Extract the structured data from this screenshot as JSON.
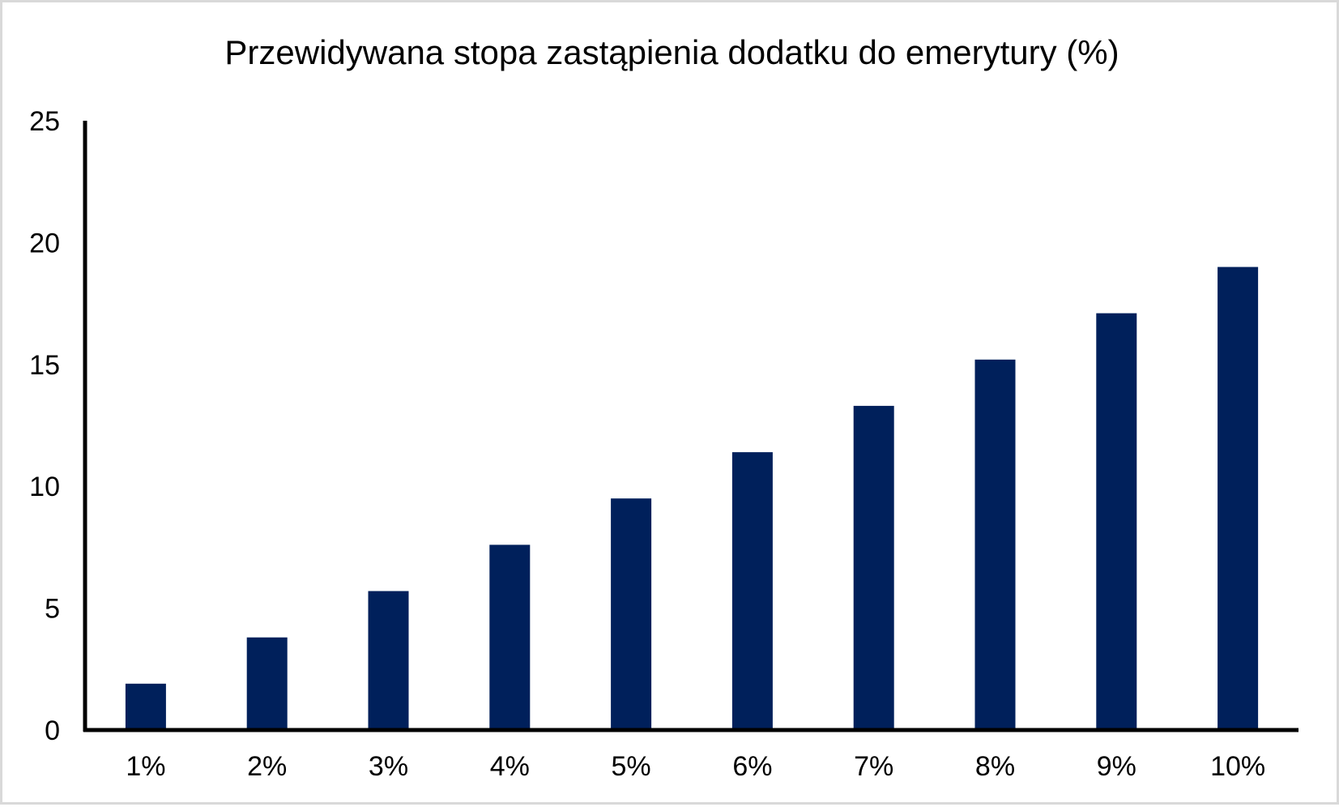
{
  "chart_data": {
    "type": "bar",
    "title": "Przewidywana stopa zastąpienia dodatku do emerytury (%)",
    "xlabel": "",
    "ylabel": "",
    "categories": [
      "1%",
      "2%",
      "3%",
      "4%",
      "5%",
      "6%",
      "7%",
      "8%",
      "9%",
      "10%"
    ],
    "values": [
      1.9,
      3.8,
      5.7,
      7.6,
      9.5,
      11.4,
      13.3,
      15.2,
      17.1,
      19.0
    ],
    "ylim": [
      0,
      25
    ],
    "yticks": [
      "0",
      "5",
      "10",
      "15",
      "20",
      "25"
    ],
    "grid": false,
    "legend": "none",
    "colors": {
      "bar": "#00205b",
      "axis": "#000000",
      "border": "#d9d9d9"
    }
  }
}
